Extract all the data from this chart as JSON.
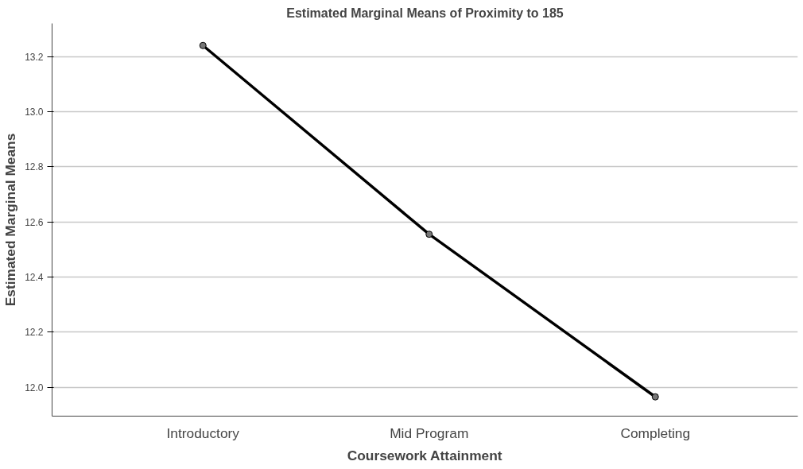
{
  "chart_data": {
    "type": "line",
    "title": "Estimated Marginal Means of Proximity to 185",
    "xlabel": "Coursework Attainment",
    "ylabel": "Estimated Marginal Means",
    "categories": [
      "Introductory",
      "Mid Program",
      "Completing"
    ],
    "series": [
      {
        "color": "#000000",
        "values": [
          13.24,
          12.555,
          11.965
        ]
      }
    ],
    "ylim": [
      11.895,
      13.32
    ],
    "yticks": [
      {
        "value": 12.0,
        "label": "12.0"
      },
      {
        "value": 12.2,
        "label": "12.2"
      },
      {
        "value": 12.4,
        "label": "12.4"
      },
      {
        "value": 12.6,
        "label": "12.6"
      },
      {
        "value": 12.8,
        "label": "12.8"
      },
      {
        "value": 13.0,
        "label": "13.0"
      },
      {
        "value": 13.2,
        "label": "13.2"
      }
    ],
    "grid": "y",
    "marker": "circle",
    "line_style": "solid"
  }
}
